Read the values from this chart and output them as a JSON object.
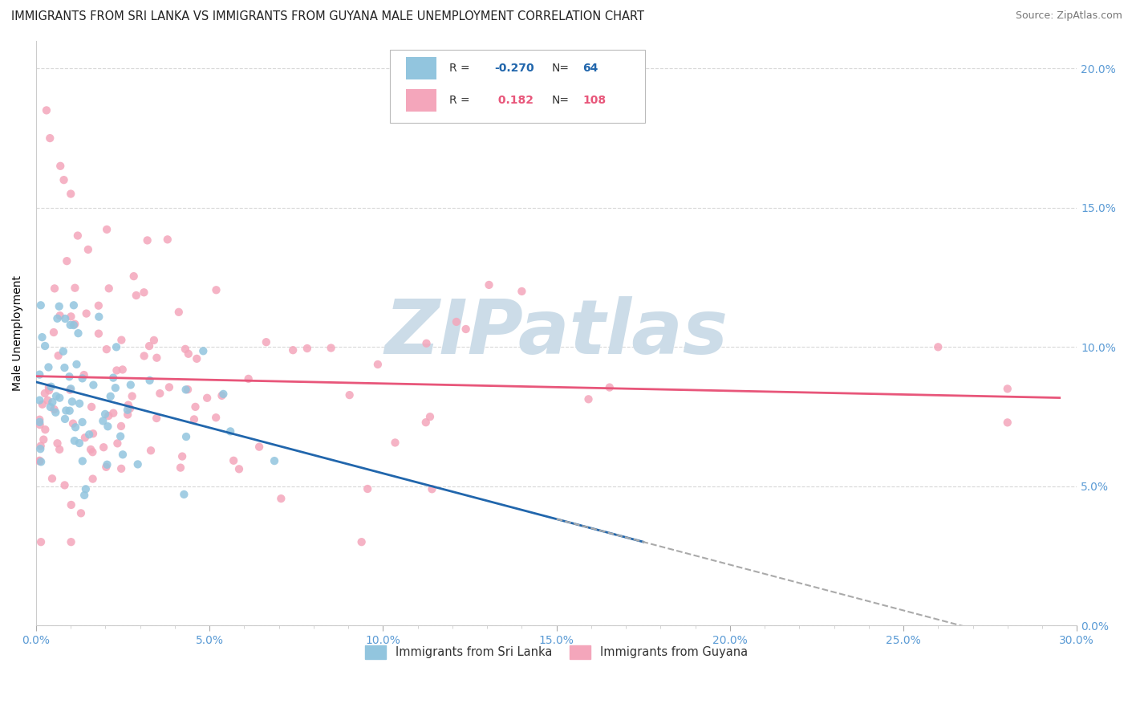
{
  "title": "IMMIGRANTS FROM SRI LANKA VS IMMIGRANTS FROM GUYANA MALE UNEMPLOYMENT CORRELATION CHART",
  "source": "Source: ZipAtlas.com",
  "ylabel": "Male Unemployment",
  "series": [
    {
      "name": "Immigrants from Sri Lanka",
      "R": -0.27,
      "N": 64,
      "color": "#92c5de",
      "trend_color": "#2166ac"
    },
    {
      "name": "Immigrants from Guyana",
      "R": 0.182,
      "N": 108,
      "color": "#f4a6bb",
      "trend_color": "#e8567a"
    }
  ],
  "xlim": [
    0.0,
    0.3
  ],
  "ylim": [
    0.0,
    0.21
  ],
  "yticks": [
    0.0,
    0.05,
    0.1,
    0.15,
    0.2
  ],
  "ytick_labels": [
    "0.0%",
    "5.0%",
    "10.0%",
    "15.0%",
    "20.0%"
  ],
  "xtick_positions": [
    0.0,
    0.05,
    0.1,
    0.15,
    0.2,
    0.25,
    0.3
  ],
  "xtick_labels": [
    "0.0%",
    "5.0%",
    "10.0%",
    "15.0%",
    "20.0%",
    "25.0%",
    "30.0%"
  ],
  "background_color": "#ffffff",
  "grid_color": "#d8d8d8",
  "tick_color": "#5b9bd5",
  "watermark": "ZIPatlas",
  "watermark_color": "#ccdce8",
  "legend_sri_R_color": "#2166ac",
  "legend_guy_R_color": "#e8567a"
}
